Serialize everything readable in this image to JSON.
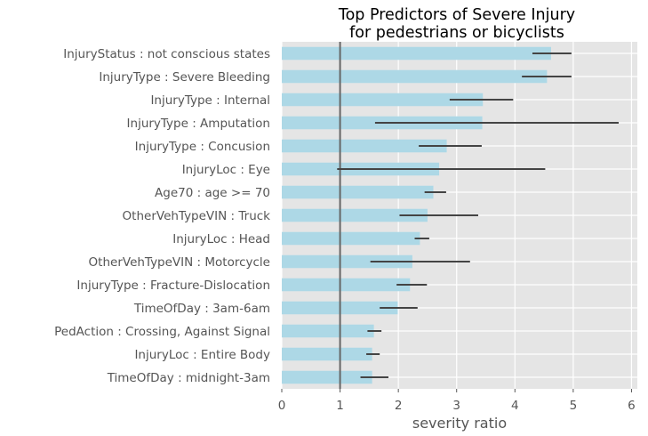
{
  "chart_data": {
    "type": "bar",
    "orientation": "horizontal",
    "title_lines": [
      "Top Predictors of Severe Injury",
      "for pedestrians or bicyclists"
    ],
    "xlabel": "severity ratio",
    "ylabel": "",
    "xlim": [
      0,
      6.1
    ],
    "xticks": [
      0,
      1,
      2,
      3,
      4,
      5,
      6
    ],
    "reference_line": 1,
    "grid": true,
    "colors": {
      "bar": "#add8e6",
      "error_bar": "#444444",
      "reference_line": "#666666",
      "background": "#e5e5e5",
      "grid": "#ffffff"
    },
    "categories": [
      "InjuryStatus : not conscious states",
      "InjuryType : Severe Bleeding",
      "InjuryType : Internal",
      "InjuryType : Amputation",
      "InjuryType : Concusion",
      "InjuryLoc : Eye",
      "Age70 : age >= 70",
      "OtherVehTypeVIN : Truck",
      "InjuryLoc : Head",
      "OtherVehTypeVIN : Motorcycle",
      "InjuryType : Fracture-Dislocation",
      "TimeOfDay : 3am-6am",
      "PedAction : Crossing, Against Signal",
      "InjuryLoc : Entire Body",
      "TimeOfDay : midnight-3am"
    ],
    "values": [
      4.62,
      4.55,
      3.45,
      3.44,
      2.83,
      2.7,
      2.6,
      2.5,
      2.37,
      2.24,
      2.2,
      1.99,
      1.58,
      1.55,
      1.55
    ],
    "ci_low": [
      4.3,
      4.12,
      2.88,
      1.6,
      2.35,
      0.95,
      2.45,
      2.02,
      2.28,
      1.52,
      1.97,
      1.68,
      1.47,
      1.45,
      1.35
    ],
    "ci_high": [
      4.97,
      4.97,
      3.97,
      5.78,
      3.43,
      4.52,
      2.82,
      3.37,
      2.53,
      3.23,
      2.49,
      2.33,
      1.71,
      1.68,
      1.83
    ]
  }
}
